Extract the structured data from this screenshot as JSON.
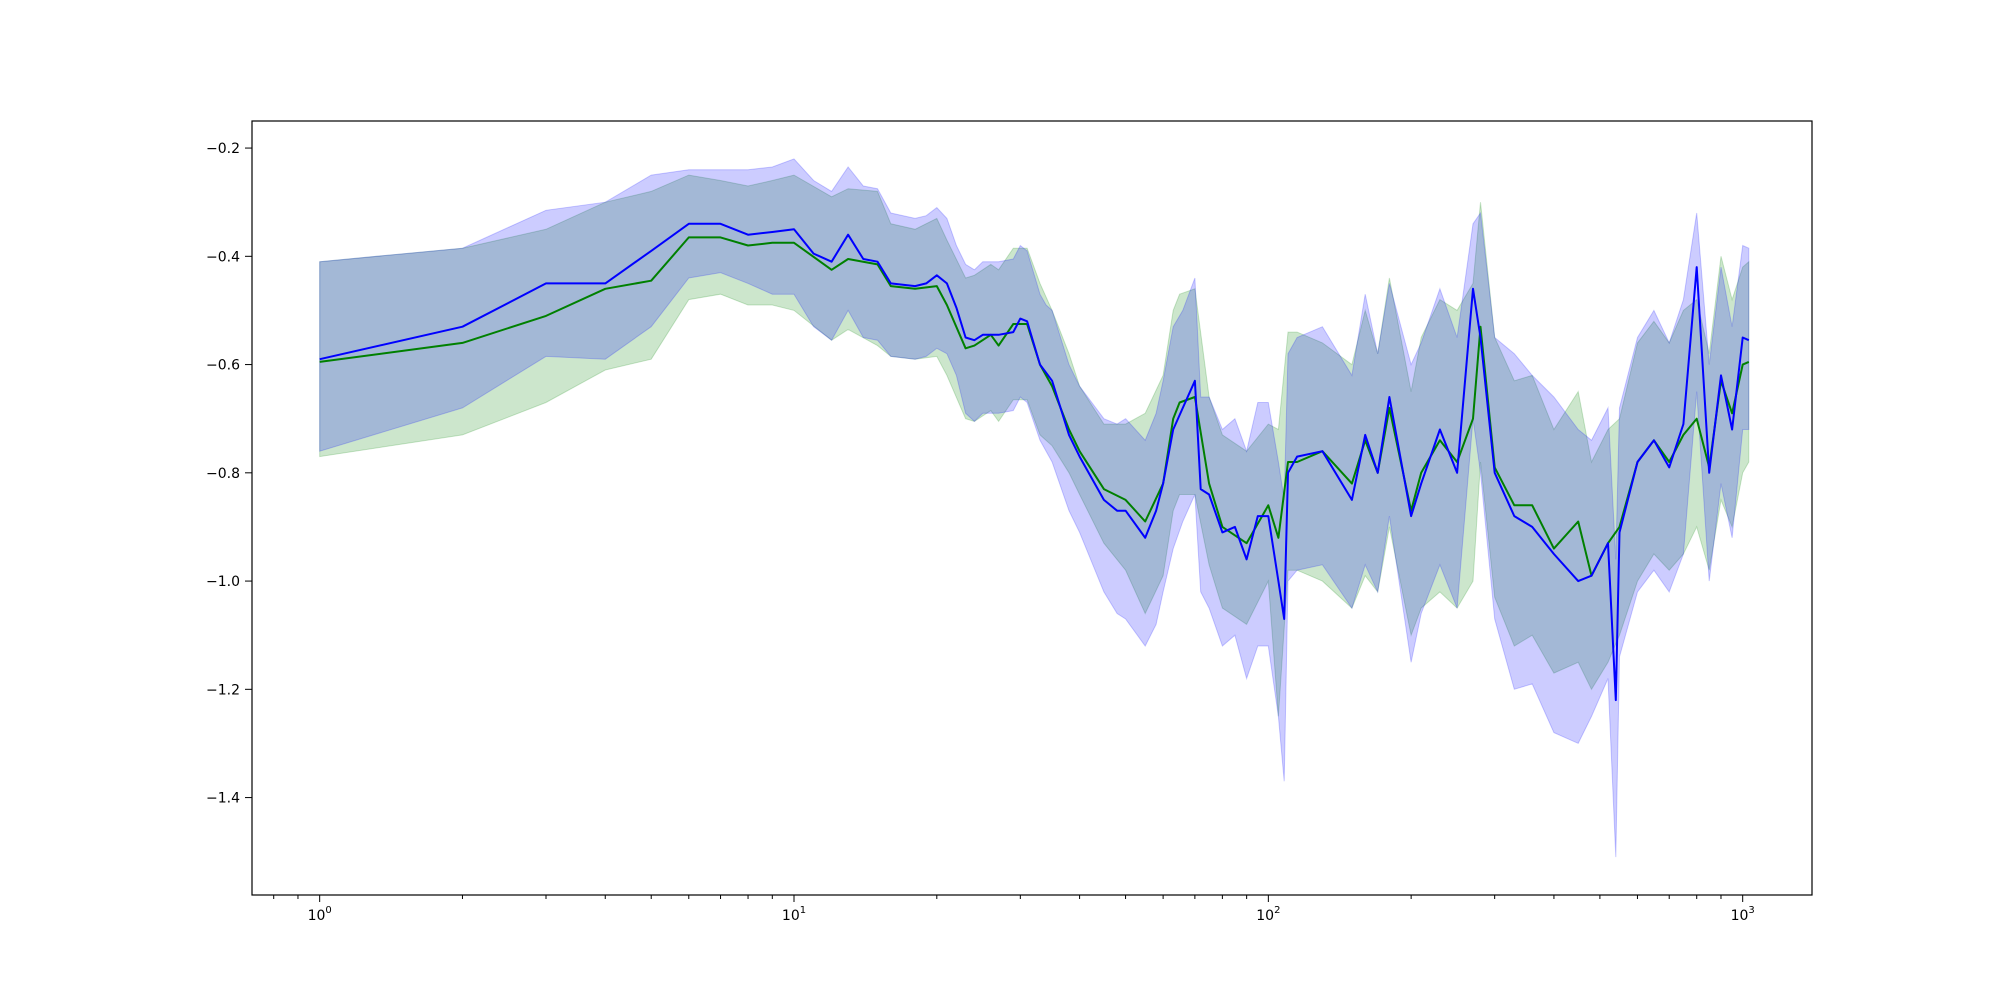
{
  "chart_data": {
    "type": "line",
    "title": "",
    "xlabel": "",
    "ylabel": "",
    "xscale": "log",
    "xlim": [
      0.72,
      1400
    ],
    "ylim": [
      -1.58,
      -0.15
    ],
    "grid": false,
    "legend": "none",
    "x_ticks": [
      {
        "value": 1,
        "base": "10",
        "exp": "0"
      },
      {
        "value": 10,
        "base": "10",
        "exp": "1"
      },
      {
        "value": 100,
        "base": "10",
        "exp": "2"
      },
      {
        "value": 1000,
        "base": "10",
        "exp": "3"
      }
    ],
    "y_ticks": [
      {
        "value": -0.2,
        "label": "−0.2"
      },
      {
        "value": -0.4,
        "label": "−0.4"
      },
      {
        "value": -0.6,
        "label": "−0.6"
      },
      {
        "value": -0.8,
        "label": "−0.8"
      },
      {
        "value": -1.0,
        "label": "−1.0"
      },
      {
        "value": -1.2,
        "label": "−1.2"
      },
      {
        "value": -1.4,
        "label": "−1.4"
      }
    ],
    "series": [
      {
        "color": "#008000",
        "band_color": "#008000",
        "band_opacity": 0.2,
        "x": [
          1,
          2,
          3,
          4,
          5,
          6,
          7,
          8,
          9,
          10,
          12,
          13,
          15,
          16,
          18,
          20,
          21,
          23,
          24,
          26,
          27,
          29,
          31,
          33,
          35,
          38,
          40,
          45,
          50,
          55,
          60,
          63,
          65,
          70,
          75,
          80,
          90,
          100,
          105,
          110,
          115,
          130,
          150,
          160,
          170,
          180,
          200,
          210,
          230,
          250,
          270,
          280,
          300,
          330,
          360,
          400,
          450,
          480,
          520,
          550,
          600,
          650,
          700,
          750,
          800,
          850,
          900,
          950,
          1000,
          1030
        ],
        "y": [
          -0.595,
          -0.56,
          -0.51,
          -0.46,
          -0.445,
          -0.365,
          -0.365,
          -0.38,
          -0.375,
          -0.375,
          -0.425,
          -0.405,
          -0.415,
          -0.455,
          -0.46,
          -0.455,
          -0.49,
          -0.57,
          -0.565,
          -0.545,
          -0.565,
          -0.525,
          -0.525,
          -0.6,
          -0.64,
          -0.72,
          -0.76,
          -0.83,
          -0.85,
          -0.89,
          -0.82,
          -0.7,
          -0.67,
          -0.66,
          -0.82,
          -0.9,
          -0.93,
          -0.86,
          -0.92,
          -0.78,
          -0.78,
          -0.76,
          -0.82,
          -0.74,
          -0.8,
          -0.68,
          -0.87,
          -0.8,
          -0.74,
          -0.78,
          -0.7,
          -0.53,
          -0.79,
          -0.86,
          -0.86,
          -0.94,
          -0.89,
          -0.99,
          -0.93,
          -0.9,
          -0.78,
          -0.74,
          -0.78,
          -0.73,
          -0.7,
          -0.79,
          -0.63,
          -0.69,
          -0.6,
          -0.595
        ],
        "lower": [
          -0.77,
          -0.73,
          -0.67,
          -0.61,
          -0.59,
          -0.48,
          -0.47,
          -0.49,
          -0.49,
          -0.5,
          -0.555,
          -0.535,
          -0.565,
          -0.585,
          -0.59,
          -0.585,
          -0.62,
          -0.7,
          -0.705,
          -0.685,
          -0.705,
          -0.665,
          -0.665,
          -0.73,
          -0.75,
          -0.8,
          -0.84,
          -0.93,
          -0.98,
          -1.06,
          -0.99,
          -0.87,
          -0.84,
          -0.84,
          -0.97,
          -1.05,
          -1.08,
          -1.0,
          -1.25,
          -0.98,
          -0.98,
          -1.0,
          -1.05,
          -0.99,
          -1.02,
          -0.9,
          -1.1,
          -1.05,
          -1.02,
          -1.05,
          -1.0,
          -0.78,
          -1.03,
          -1.12,
          -1.1,
          -1.17,
          -1.15,
          -1.2,
          -1.15,
          -1.1,
          -1.0,
          -0.95,
          -0.98,
          -0.95,
          -0.9,
          -0.98,
          -0.85,
          -0.9,
          -0.8,
          -0.78
        ],
        "upper": [
          -0.41,
          -0.385,
          -0.35,
          -0.3,
          -0.28,
          -0.25,
          -0.26,
          -0.27,
          -0.26,
          -0.25,
          -0.29,
          -0.275,
          -0.28,
          -0.34,
          -0.35,
          -0.33,
          -0.37,
          -0.44,
          -0.435,
          -0.415,
          -0.425,
          -0.385,
          -0.385,
          -0.45,
          -0.5,
          -0.58,
          -0.64,
          -0.71,
          -0.71,
          -0.69,
          -0.62,
          -0.5,
          -0.47,
          -0.46,
          -0.66,
          -0.73,
          -0.76,
          -0.71,
          -0.72,
          -0.54,
          -0.54,
          -0.56,
          -0.6,
          -0.5,
          -0.58,
          -0.44,
          -0.65,
          -0.55,
          -0.48,
          -0.5,
          -0.45,
          -0.3,
          -0.55,
          -0.63,
          -0.62,
          -0.72,
          -0.65,
          -0.78,
          -0.72,
          -0.7,
          -0.56,
          -0.52,
          -0.56,
          -0.5,
          -0.48,
          -0.58,
          -0.4,
          -0.48,
          -0.42,
          -0.41
        ]
      },
      {
        "color": "#0000ff",
        "band_color": "#0000ff",
        "band_opacity": 0.2,
        "x": [
          1,
          2,
          3,
          4,
          5,
          6,
          7,
          8,
          9,
          10,
          11,
          12,
          13,
          14,
          15,
          16,
          18,
          19,
          20,
          21,
          22,
          23,
          24,
          25,
          27,
          29,
          30,
          31,
          33,
          34,
          35,
          38,
          40,
          45,
          48,
          50,
          55,
          58,
          60,
          63,
          66,
          70,
          72,
          75,
          80,
          85,
          90,
          95,
          100,
          105,
          108,
          110,
          115,
          130,
          150,
          160,
          170,
          180,
          200,
          210,
          230,
          250,
          270,
          280,
          300,
          330,
          360,
          400,
          450,
          480,
          520,
          540,
          550,
          600,
          650,
          700,
          750,
          800,
          850,
          900,
          950,
          1000,
          1030
        ],
        "y": [
          -0.59,
          -0.53,
          -0.45,
          -0.45,
          -0.39,
          -0.34,
          -0.34,
          -0.36,
          -0.355,
          -0.35,
          -0.395,
          -0.41,
          -0.36,
          -0.405,
          -0.41,
          -0.45,
          -0.455,
          -0.45,
          -0.435,
          -0.45,
          -0.495,
          -0.55,
          -0.555,
          -0.545,
          -0.545,
          -0.54,
          -0.515,
          -0.52,
          -0.6,
          -0.615,
          -0.63,
          -0.73,
          -0.77,
          -0.85,
          -0.87,
          -0.87,
          -0.92,
          -0.87,
          -0.82,
          -0.72,
          -0.68,
          -0.63,
          -0.83,
          -0.84,
          -0.91,
          -0.9,
          -0.96,
          -0.88,
          -0.88,
          -1.0,
          -1.07,
          -0.8,
          -0.77,
          -0.76,
          -0.85,
          -0.73,
          -0.8,
          -0.66,
          -0.88,
          -0.82,
          -0.72,
          -0.8,
          -0.46,
          -0.55,
          -0.8,
          -0.88,
          -0.9,
          -0.95,
          -1.0,
          -0.99,
          -0.93,
          -1.22,
          -0.91,
          -0.78,
          -0.74,
          -0.79,
          -0.71,
          -0.42,
          -0.8,
          -0.62,
          -0.72,
          -0.55,
          -0.555
        ],
        "lower": [
          -0.76,
          -0.68,
          -0.585,
          -0.59,
          -0.53,
          -0.44,
          -0.43,
          -0.45,
          -0.47,
          -0.47,
          -0.53,
          -0.555,
          -0.5,
          -0.55,
          -0.555,
          -0.585,
          -0.59,
          -0.585,
          -0.57,
          -0.58,
          -0.62,
          -0.69,
          -0.705,
          -0.69,
          -0.69,
          -0.685,
          -0.66,
          -0.67,
          -0.74,
          -0.76,
          -0.78,
          -0.87,
          -0.91,
          -1.02,
          -1.06,
          -1.07,
          -1.12,
          -1.08,
          -1.02,
          -0.94,
          -0.89,
          -0.84,
          -1.02,
          -1.05,
          -1.12,
          -1.1,
          -1.18,
          -1.12,
          -1.12,
          -1.25,
          -1.37,
          -1.0,
          -0.98,
          -0.97,
          -1.05,
          -0.97,
          -1.02,
          -0.88,
          -1.15,
          -1.06,
          -0.97,
          -1.05,
          -0.7,
          -0.8,
          -1.07,
          -1.2,
          -1.19,
          -1.28,
          -1.3,
          -1.25,
          -1.18,
          -1.51,
          -1.14,
          -1.02,
          -0.98,
          -1.02,
          -0.95,
          -0.65,
          -1.0,
          -0.82,
          -0.92,
          -0.72,
          -0.72
        ],
        "upper": [
          -0.41,
          -0.385,
          -0.315,
          -0.3,
          -0.25,
          -0.24,
          -0.24,
          -0.24,
          -0.235,
          -0.22,
          -0.26,
          -0.28,
          -0.235,
          -0.27,
          -0.275,
          -0.32,
          -0.33,
          -0.325,
          -0.31,
          -0.33,
          -0.38,
          -0.415,
          -0.425,
          -0.41,
          -0.41,
          -0.405,
          -0.38,
          -0.39,
          -0.47,
          -0.49,
          -0.5,
          -0.6,
          -0.64,
          -0.7,
          -0.71,
          -0.7,
          -0.74,
          -0.69,
          -0.63,
          -0.53,
          -0.5,
          -0.44,
          -0.66,
          -0.66,
          -0.72,
          -0.7,
          -0.76,
          -0.67,
          -0.67,
          -0.78,
          -0.85,
          -0.58,
          -0.55,
          -0.53,
          -0.62,
          -0.47,
          -0.58,
          -0.45,
          -0.6,
          -0.56,
          -0.46,
          -0.55,
          -0.34,
          -0.32,
          -0.55,
          -0.58,
          -0.62,
          -0.66,
          -0.72,
          -0.74,
          -0.68,
          -0.96,
          -0.68,
          -0.55,
          -0.5,
          -0.56,
          -0.48,
          -0.32,
          -0.6,
          -0.42,
          -0.53,
          -0.38,
          -0.385
        ]
      }
    ]
  }
}
